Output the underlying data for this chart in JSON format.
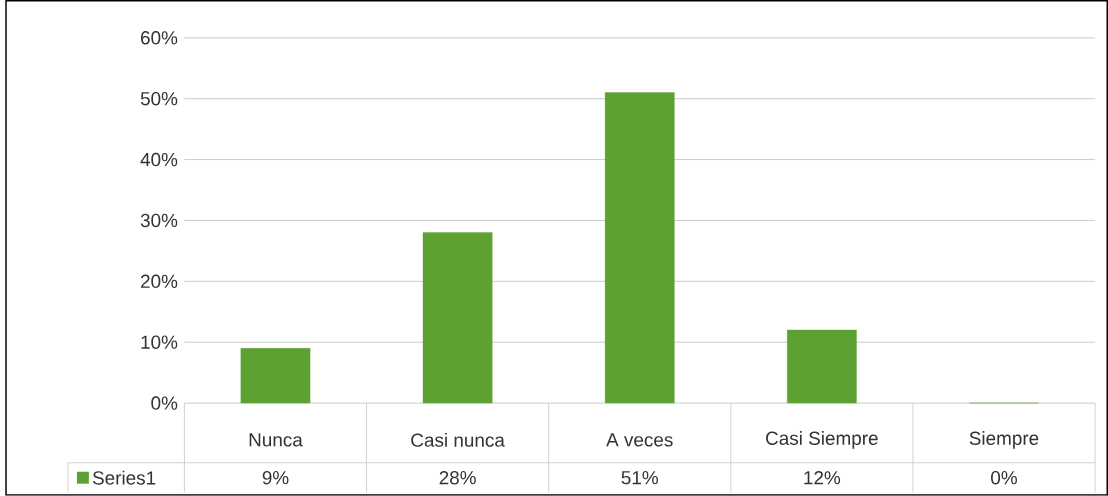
{
  "chart_data": {
    "type": "bar",
    "categories": [
      "Nunca",
      "Casi nunca",
      "A veces",
      "Casi Siempre",
      "Siempre"
    ],
    "series": [
      {
        "name": "Series1",
        "color": "#5ea133",
        "values": [
          9,
          28,
          51,
          12,
          0
        ],
        "value_labels": [
          "9%",
          "28%",
          "51%",
          "12%",
          "0%"
        ]
      }
    ],
    "ylim": [
      0,
      60
    ],
    "yticks": [
      {
        "value": 0,
        "label": "0%"
      },
      {
        "value": 10,
        "label": "10%"
      },
      {
        "value": 20,
        "label": "20%"
      },
      {
        "value": 30,
        "label": "30%"
      },
      {
        "value": 40,
        "label": "40%"
      },
      {
        "value": 50,
        "label": "50%"
      },
      {
        "value": 60,
        "label": "60%"
      }
    ],
    "grid": "y",
    "legend": "bottom"
  }
}
